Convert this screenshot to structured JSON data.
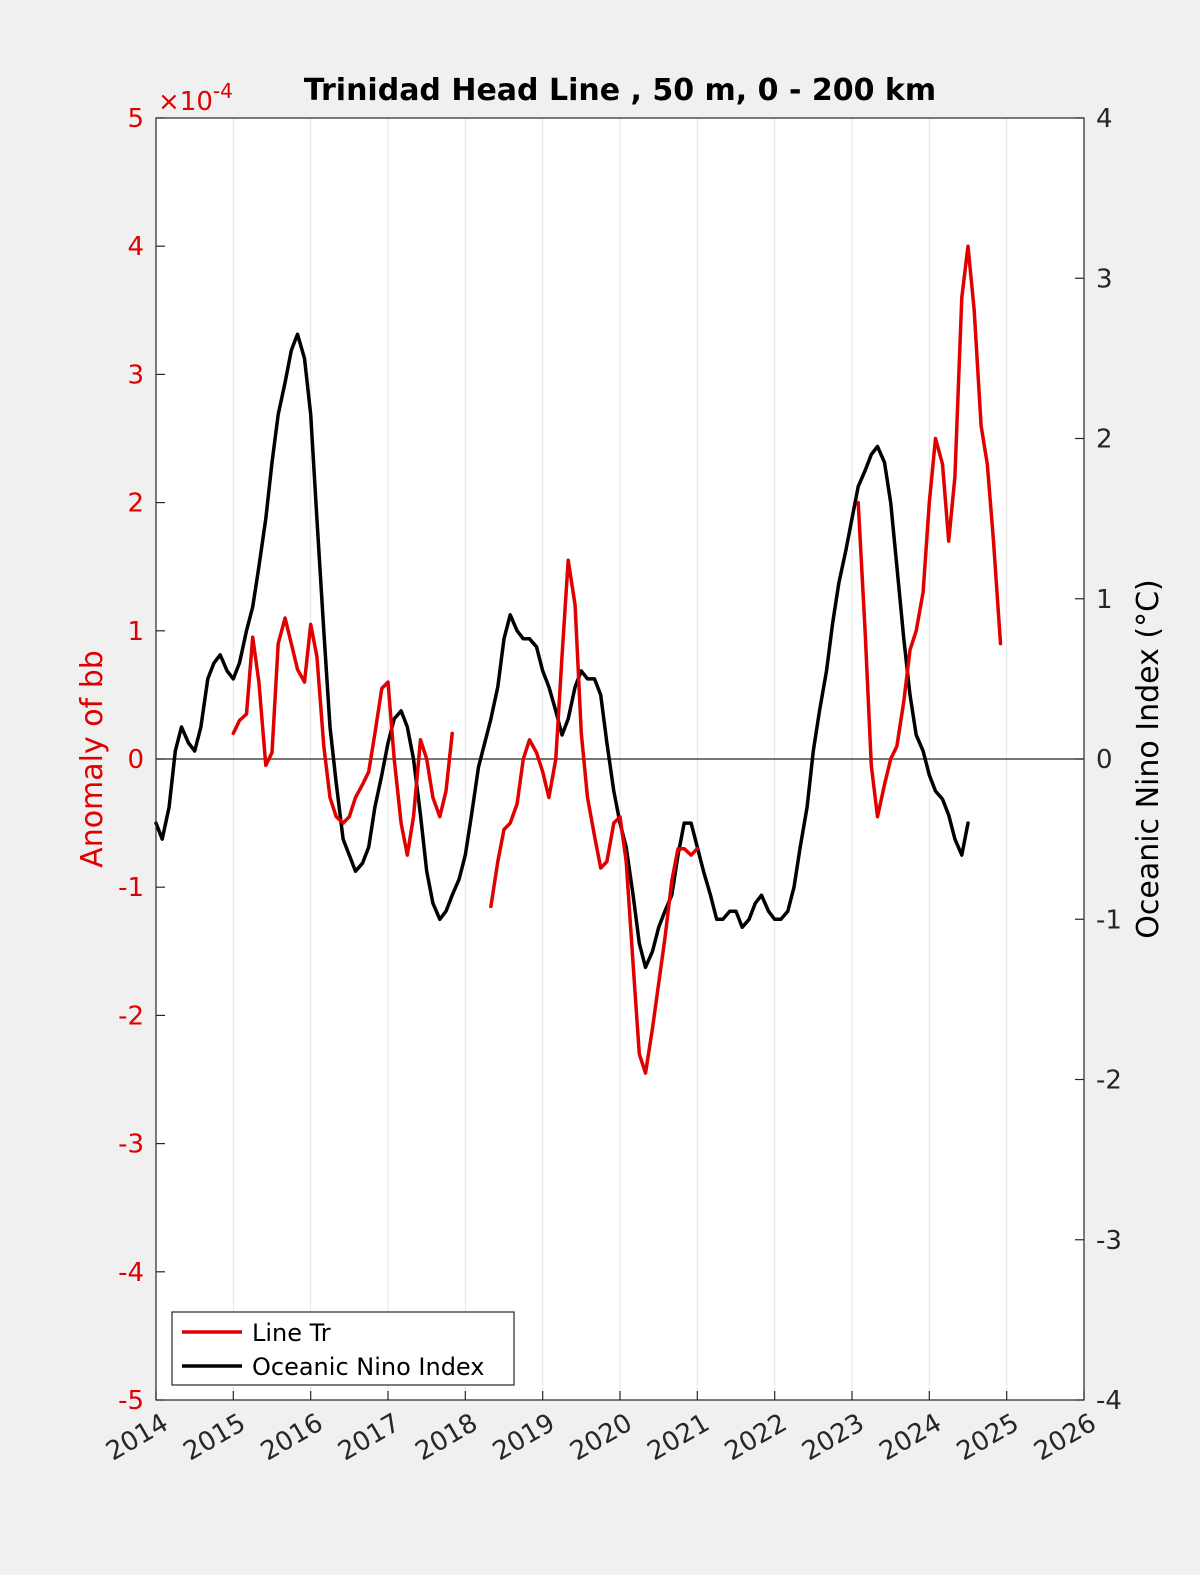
{
  "chart_data": {
    "type": "line",
    "title": "Trinidad Head Line , 50 m, 0 - 200 km",
    "ylabel_left": "Anomaly of bb",
    "ylabel_right": "Oceanic Nino Index (°C)",
    "left_axis_exponent": "×10",
    "left_axis_exponent_power": "-4",
    "xlim": [
      2014,
      2026
    ],
    "ylim_left": [
      -5,
      5
    ],
    "ylim_right": [
      -4,
      4
    ],
    "x_ticks": [
      "2014",
      "2015",
      "2016",
      "2017",
      "2018",
      "2019",
      "2020",
      "2021",
      "2022",
      "2023",
      "2024",
      "2025",
      "2026"
    ],
    "y_ticks_left": [
      "-5",
      "-4",
      "-3",
      "-2",
      "-1",
      "0",
      "1",
      "2",
      "3",
      "4",
      "5"
    ],
    "y_ticks_right": [
      "-4",
      "-3",
      "-2",
      "-1",
      "0",
      "1",
      "2",
      "3",
      "4"
    ],
    "grid": "vertical",
    "legend_position": "bottom-left",
    "colors": {
      "line_tr": "#e00000",
      "oni": "#000000"
    },
    "series": [
      {
        "name": "Line Tr",
        "axis": "left",
        "segments": [
          [
            [
              2015.0,
              0.2
            ],
            [
              2015.08,
              0.3
            ],
            [
              2015.17,
              0.35
            ],
            [
              2015.25,
              0.95
            ],
            [
              2015.33,
              0.6
            ],
            [
              2015.42,
              -0.05
            ],
            [
              2015.5,
              0.05
            ],
            [
              2015.58,
              0.9
            ],
            [
              2015.67,
              1.1
            ],
            [
              2015.75,
              0.9
            ],
            [
              2015.83,
              0.7
            ],
            [
              2015.92,
              0.6
            ],
            [
              2016.0,
              1.05
            ],
            [
              2016.08,
              0.8
            ],
            [
              2016.17,
              0.1
            ],
            [
              2016.25,
              -0.3
            ],
            [
              2016.33,
              -0.45
            ],
            [
              2016.42,
              -0.5
            ],
            [
              2016.5,
              -0.45
            ],
            [
              2016.58,
              -0.3
            ],
            [
              2016.67,
              -0.2
            ],
            [
              2016.75,
              -0.1
            ],
            [
              2016.83,
              0.2
            ],
            [
              2016.92,
              0.55
            ],
            [
              2017.0,
              0.6
            ],
            [
              2017.08,
              0.0
            ],
            [
              2017.17,
              -0.5
            ],
            [
              2017.25,
              -0.75
            ],
            [
              2017.33,
              -0.45
            ],
            [
              2017.42,
              0.15
            ],
            [
              2017.5,
              0.0
            ],
            [
              2017.58,
              -0.3
            ],
            [
              2017.67,
              -0.45
            ],
            [
              2017.75,
              -0.25
            ],
            [
              2017.83,
              0.2
            ]
          ],
          [
            [
              2018.33,
              -1.15
            ],
            [
              2018.42,
              -0.8
            ],
            [
              2018.5,
              -0.55
            ],
            [
              2018.58,
              -0.5
            ],
            [
              2018.67,
              -0.35
            ],
            [
              2018.75,
              0.0
            ],
            [
              2018.83,
              0.15
            ],
            [
              2018.92,
              0.05
            ],
            [
              2019.0,
              -0.1
            ],
            [
              2019.08,
              -0.3
            ],
            [
              2019.17,
              0.0
            ],
            [
              2019.25,
              0.8
            ],
            [
              2019.33,
              1.55
            ],
            [
              2019.42,
              1.2
            ],
            [
              2019.5,
              0.2
            ],
            [
              2019.58,
              -0.3
            ],
            [
              2019.67,
              -0.6
            ],
            [
              2019.75,
              -0.85
            ],
            [
              2019.83,
              -0.8
            ],
            [
              2019.92,
              -0.5
            ],
            [
              2020.0,
              -0.45
            ],
            [
              2020.08,
              -0.8
            ],
            [
              2020.17,
              -1.6
            ],
            [
              2020.25,
              -2.3
            ],
            [
              2020.33,
              -2.45
            ],
            [
              2020.42,
              -2.1
            ],
            [
              2020.5,
              -1.75
            ],
            [
              2020.58,
              -1.4
            ],
            [
              2020.67,
              -0.95
            ],
            [
              2020.75,
              -0.7
            ],
            [
              2020.83,
              -0.7
            ],
            [
              2020.92,
              -0.75
            ],
            [
              2021.0,
              -0.7
            ]
          ],
          [
            [
              2023.08,
              2.0
            ],
            [
              2023.17,
              1.0
            ],
            [
              2023.25,
              -0.05
            ],
            [
              2023.33,
              -0.45
            ],
            [
              2023.42,
              -0.2
            ],
            [
              2023.5,
              0.0
            ],
            [
              2023.58,
              0.1
            ],
            [
              2023.67,
              0.45
            ],
            [
              2023.75,
              0.85
            ],
            [
              2023.83,
              1.0
            ],
            [
              2023.92,
              1.3
            ],
            [
              2024.0,
              2.0
            ],
            [
              2024.08,
              2.5
            ],
            [
              2024.17,
              2.3
            ],
            [
              2024.25,
              1.7
            ],
            [
              2024.33,
              2.2
            ],
            [
              2024.42,
              3.6
            ],
            [
              2024.5,
              4.0
            ],
            [
              2024.58,
              3.5
            ],
            [
              2024.67,
              2.6
            ],
            [
              2024.75,
              2.3
            ],
            [
              2024.83,
              1.7
            ],
            [
              2024.92,
              0.9
            ]
          ]
        ]
      },
      {
        "name": "Oceanic Nino Index",
        "axis": "right",
        "segments": [
          [
            [
              2014.0,
              -0.4
            ],
            [
              2014.08,
              -0.5
            ],
            [
              2014.17,
              -0.3
            ],
            [
              2014.25,
              0.05
            ],
            [
              2014.33,
              0.2
            ],
            [
              2014.42,
              0.1
            ],
            [
              2014.5,
              0.05
            ],
            [
              2014.58,
              0.2
            ],
            [
              2014.67,
              0.5
            ],
            [
              2014.75,
              0.6
            ],
            [
              2014.83,
              0.65
            ],
            [
              2014.92,
              0.55
            ],
            [
              2015.0,
              0.5
            ],
            [
              2015.08,
              0.6
            ],
            [
              2015.17,
              0.8
            ],
            [
              2015.25,
              0.95
            ],
            [
              2015.33,
              1.2
            ],
            [
              2015.42,
              1.5
            ],
            [
              2015.5,
              1.85
            ],
            [
              2015.58,
              2.15
            ],
            [
              2015.67,
              2.35
            ],
            [
              2015.75,
              2.55
            ],
            [
              2015.83,
              2.65
            ],
            [
              2015.92,
              2.5
            ],
            [
              2016.0,
              2.15
            ],
            [
              2016.08,
              1.5
            ],
            [
              2016.17,
              0.8
            ],
            [
              2016.25,
              0.2
            ],
            [
              2016.33,
              -0.15
            ],
            [
              2016.42,
              -0.5
            ],
            [
              2016.5,
              -0.6
            ],
            [
              2016.58,
              -0.7
            ],
            [
              2016.67,
              -0.65
            ],
            [
              2016.75,
              -0.55
            ],
            [
              2016.83,
              -0.3
            ],
            [
              2016.92,
              -0.1
            ],
            [
              2017.0,
              0.1
            ],
            [
              2017.08,
              0.25
            ],
            [
              2017.17,
              0.3
            ],
            [
              2017.25,
              0.2
            ],
            [
              2017.33,
              0.0
            ],
            [
              2017.42,
              -0.35
            ],
            [
              2017.5,
              -0.7
            ],
            [
              2017.58,
              -0.9
            ],
            [
              2017.67,
              -1.0
            ],
            [
              2017.75,
              -0.95
            ],
            [
              2017.83,
              -0.85
            ],
            [
              2017.92,
              -0.75
            ],
            [
              2018.0,
              -0.6
            ],
            [
              2018.08,
              -0.35
            ],
            [
              2018.17,
              -0.05
            ],
            [
              2018.25,
              0.1
            ],
            [
              2018.33,
              0.25
            ],
            [
              2018.42,
              0.45
            ],
            [
              2018.5,
              0.75
            ],
            [
              2018.58,
              0.9
            ],
            [
              2018.67,
              0.8
            ],
            [
              2018.75,
              0.75
            ],
            [
              2018.83,
              0.75
            ],
            [
              2018.92,
              0.7
            ],
            [
              2019.0,
              0.55
            ],
            [
              2019.08,
              0.45
            ],
            [
              2019.17,
              0.3
            ],
            [
              2019.25,
              0.15
            ],
            [
              2019.33,
              0.25
            ],
            [
              2019.42,
              0.45
            ],
            [
              2019.5,
              0.55
            ],
            [
              2019.58,
              0.5
            ],
            [
              2019.67,
              0.5
            ],
            [
              2019.75,
              0.4
            ],
            [
              2019.83,
              0.1
            ],
            [
              2019.92,
              -0.2
            ],
            [
              2020.0,
              -0.4
            ],
            [
              2020.08,
              -0.55
            ],
            [
              2020.17,
              -0.85
            ],
            [
              2020.25,
              -1.15
            ],
            [
              2020.33,
              -1.3
            ],
            [
              2020.42,
              -1.2
            ],
            [
              2020.5,
              -1.05
            ],
            [
              2020.58,
              -0.95
            ],
            [
              2020.67,
              -0.85
            ],
            [
              2020.75,
              -0.6
            ],
            [
              2020.83,
              -0.4
            ],
            [
              2020.92,
              -0.4
            ],
            [
              2021.0,
              -0.55
            ],
            [
              2021.08,
              -0.7
            ],
            [
              2021.17,
              -0.85
            ],
            [
              2021.25,
              -1.0
            ],
            [
              2021.33,
              -1.0
            ],
            [
              2021.42,
              -0.95
            ],
            [
              2021.5,
              -0.95
            ],
            [
              2021.58,
              -1.05
            ],
            [
              2021.67,
              -1.0
            ],
            [
              2021.75,
              -0.9
            ],
            [
              2021.83,
              -0.85
            ],
            [
              2021.92,
              -0.95
            ],
            [
              2022.0,
              -1.0
            ],
            [
              2022.08,
              -1.0
            ],
            [
              2022.17,
              -0.95
            ],
            [
              2022.25,
              -0.8
            ],
            [
              2022.33,
              -0.55
            ],
            [
              2022.42,
              -0.3
            ],
            [
              2022.5,
              0.05
            ],
            [
              2022.58,
              0.3
            ],
            [
              2022.67,
              0.55
            ],
            [
              2022.75,
              0.85
            ],
            [
              2022.83,
              1.1
            ],
            [
              2022.92,
              1.3
            ],
            [
              2023.0,
              1.5
            ],
            [
              2023.08,
              1.7
            ],
            [
              2023.17,
              1.8
            ],
            [
              2023.25,
              1.9
            ],
            [
              2023.33,
              1.95
            ],
            [
              2023.42,
              1.85
            ],
            [
              2023.5,
              1.6
            ],
            [
              2023.58,
              1.2
            ],
            [
              2023.67,
              0.75
            ],
            [
              2023.75,
              0.4
            ],
            [
              2023.83,
              0.15
            ],
            [
              2023.92,
              0.05
            ],
            [
              2024.0,
              -0.1
            ],
            [
              2024.08,
              -0.2
            ],
            [
              2024.17,
              -0.25
            ],
            [
              2024.25,
              -0.35
            ],
            [
              2024.33,
              -0.5
            ],
            [
              2024.42,
              -0.6
            ],
            [
              2024.5,
              -0.4
            ]
          ]
        ]
      }
    ]
  },
  "legend": {
    "items": [
      {
        "label": "Line Tr"
      },
      {
        "label": "Oceanic Nino Index"
      }
    ]
  }
}
